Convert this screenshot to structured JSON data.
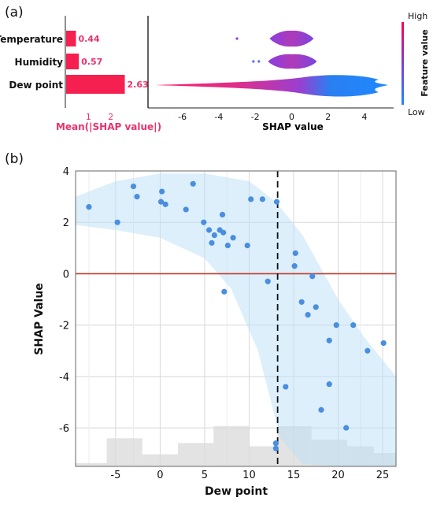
{
  "chart_data": [
    {
      "panel": "(a)",
      "type": "bar",
      "features": [
        "Temperature",
        "Humidity",
        "Dew point"
      ],
      "values": [
        0.44,
        0.57,
        2.63
      ],
      "value_labels": [
        "0.44",
        "0.57",
        "2.63"
      ],
      "xlabel": "Mean(|SHAP value|)",
      "xticks": [
        1,
        2
      ],
      "bar_color": "#f5204f",
      "xlim": [
        0,
        3.6
      ]
    },
    {
      "panel": "",
      "type": "violin",
      "features": [
        "Temperature",
        "Humidity",
        "Dew point"
      ],
      "xlabel": "SHAP value",
      "xticks": [
        -6,
        -4,
        -2,
        0,
        2,
        4
      ],
      "xlim": [
        -7.8,
        5.6
      ],
      "violins": [
        {
          "feature": "Temperature",
          "center": 0,
          "halfwidth": 1.3,
          "outliers": [
            -3.0
          ]
        },
        {
          "feature": "Humidity",
          "center": 0,
          "halfwidth": 1.5,
          "outliers": [
            -2.1,
            -1.8
          ]
        },
        {
          "feature": "Dew point",
          "center": 2.4,
          "halfwidth": 7.4,
          "outliers": []
        }
      ],
      "colorbar": {
        "label": "Feature value",
        "high": "High",
        "low": "Low",
        "colors": [
          "#1e88ff",
          "#7b3fd0",
          "#ff0055"
        ]
      }
    },
    {
      "panel": "(b)",
      "type": "scatter",
      "xlabel": "Dew point",
      "ylabel": "SHAP Value",
      "xticks": [
        -5,
        0,
        5,
        10,
        15,
        20,
        25
      ],
      "yticks": [
        -6,
        -4,
        -2,
        0,
        2,
        4
      ],
      "xlim": [
        -9.5,
        26.5
      ],
      "ylim": [
        -7.5,
        4
      ],
      "threshold_x": 13.2,
      "zero_line_color": "#c0392b",
      "point_color": "#4a8ee0",
      "points": [
        [
          -8,
          2.6
        ],
        [
          -4.8,
          2.0
        ],
        [
          -3.0,
          3.4
        ],
        [
          -2.6,
          3.0
        ],
        [
          0.2,
          3.2
        ],
        [
          0.1,
          2.8
        ],
        [
          0.6,
          2.7
        ],
        [
          2.9,
          2.5
        ],
        [
          3.7,
          3.5
        ],
        [
          4.9,
          2.0
        ],
        [
          5.5,
          1.7
        ],
        [
          5.8,
          1.2
        ],
        [
          6.1,
          1.5
        ],
        [
          6.7,
          1.7
        ],
        [
          7.0,
          2.3
        ],
        [
          7.1,
          1.6
        ],
        [
          7.6,
          1.1
        ],
        [
          8.2,
          1.4
        ],
        [
          9.8,
          1.1
        ],
        [
          10.2,
          2.9
        ],
        [
          11.5,
          2.9
        ],
        [
          12.1,
          -0.3
        ],
        [
          7.2,
          -0.7
        ],
        [
          13.1,
          2.8
        ],
        [
          13.0,
          -6.6
        ],
        [
          13.0,
          -6.8
        ],
        [
          15.2,
          0.8
        ],
        [
          15.1,
          0.3
        ],
        [
          15.9,
          -1.1
        ],
        [
          16.6,
          -1.6
        ],
        [
          17.1,
          -0.1
        ],
        [
          17.5,
          -1.3
        ],
        [
          14.1,
          -4.4
        ],
        [
          18.1,
          -5.3
        ],
        [
          19.0,
          -2.6
        ],
        [
          19.0,
          -4.3
        ],
        [
          19.8,
          -2.0
        ],
        [
          20.9,
          -6.0
        ],
        [
          21.7,
          -2.0
        ],
        [
          23.3,
          -3.0
        ],
        [
          25.1,
          -2.7
        ]
      ],
      "histogram": {
        "edges": [
          -9.5,
          -6,
          -2,
          2,
          6,
          10,
          13.2,
          17,
          21,
          24,
          26.5
        ],
        "heights": [
          0.05,
          0.42,
          0.18,
          0.35,
          0.6,
          0.3,
          0.6,
          0.4,
          0.3,
          0.2
        ]
      }
    }
  ]
}
